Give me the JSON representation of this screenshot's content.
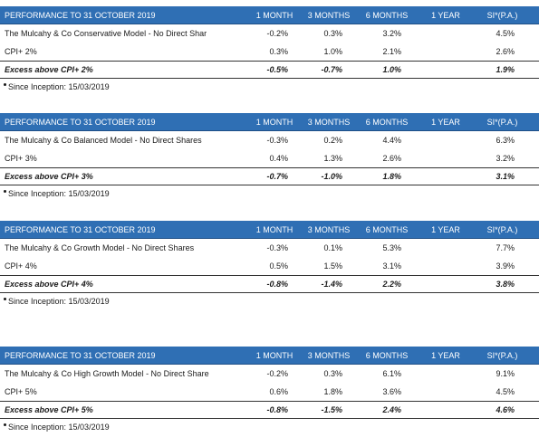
{
  "columns": [
    "PERFORMANCE TO 31 OCTOBER 2019",
    "1 MONTH",
    "3 MONTHS",
    "6 MONTHS",
    "1 YEAR",
    "SI*(P.A.)"
  ],
  "tables": [
    {
      "header_bg": "#2f6fb4",
      "model": {
        "name": "The Mulcahy & Co Conservative Model - No Direct Shar",
        "m1": "-0.2%",
        "m3": "0.3%",
        "m6": "3.2%",
        "y1": "",
        "si": "4.5%"
      },
      "cpi": {
        "name": "CPI+ 2%",
        "m1": "0.3%",
        "m3": "1.0%",
        "m6": "2.1%",
        "y1": "",
        "si": "2.6%"
      },
      "excess": {
        "name": "Excess above CPI+ 2%",
        "m1": "-0.5%",
        "m3": "-0.7%",
        "m6": "1.0%",
        "y1": "",
        "si": "1.9%"
      },
      "note": "Since Inception: 15/03/2019"
    },
    {
      "header_bg": "#2f6fb4",
      "model": {
        "name": "The Mulcahy & Co Balanced Model - No Direct Shares",
        "m1": "-0.3%",
        "m3": "0.2%",
        "m6": "4.4%",
        "y1": "",
        "si": "6.3%"
      },
      "cpi": {
        "name": "CPI+ 3%",
        "m1": "0.4%",
        "m3": "1.3%",
        "m6": "2.6%",
        "y1": "",
        "si": "3.2%"
      },
      "excess": {
        "name": "Excess above CPI+ 3%",
        "m1": "-0.7%",
        "m3": "-1.0%",
        "m6": "1.8%",
        "y1": "",
        "si": "3.1%"
      },
      "note": "Since Inception: 15/03/2019"
    },
    {
      "header_bg": "#2f6fb4",
      "model": {
        "name": "The Mulcahy & Co Growth Model - No Direct Shares",
        "m1": "-0.3%",
        "m3": "0.1%",
        "m6": "5.3%",
        "y1": "",
        "si": "7.7%"
      },
      "cpi": {
        "name": "CPI+ 4%",
        "m1": "0.5%",
        "m3": "1.5%",
        "m6": "3.1%",
        "y1": "",
        "si": "3.9%"
      },
      "excess": {
        "name": "Excess above CPI+ 4%",
        "m1": "-0.8%",
        "m3": "-1.4%",
        "m6": "2.2%",
        "y1": "",
        "si": "3.8%"
      },
      "note": "Since Inception: 15/03/2019"
    },
    {
      "header_bg": "#2f6fb4",
      "model": {
        "name": "The Mulcahy & Co High Growth Model - No Direct Share",
        "m1": "-0.2%",
        "m3": "0.3%",
        "m6": "6.1%",
        "y1": "",
        "si": "9.1%"
      },
      "cpi": {
        "name": "CPI+ 5%",
        "m1": "0.6%",
        "m3": "1.8%",
        "m6": "3.6%",
        "y1": "",
        "si": "4.5%"
      },
      "excess": {
        "name": "Excess above CPI+ 5%",
        "m1": "-0.8%",
        "m3": "-1.5%",
        "m6": "2.4%",
        "y1": "",
        "si": "4.6%"
      },
      "note": "Since Inception: 15/03/2019"
    }
  ]
}
